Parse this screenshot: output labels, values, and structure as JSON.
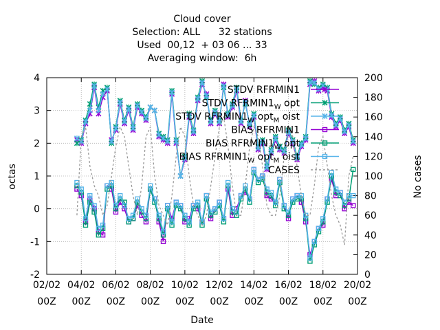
{
  "chart_data": {
    "type": "line",
    "title_lines": [
      "Cloud cover",
      "Selection: ALL      32 stations",
      "Used  00,12  + 03 06 ... 33",
      "Averaging window:  6h"
    ],
    "xlabel": "Date",
    "ylabel": "octas",
    "y2label": "No cases",
    "x_ticks": [
      {
        "d": "02/02",
        "t": "00Z"
      },
      {
        "d": "04/02",
        "t": "00Z"
      },
      {
        "d": "06/02",
        "t": "00Z"
      },
      {
        "d": "08/02",
        "t": "00Z"
      },
      {
        "d": "10/02",
        "t": "00Z"
      },
      {
        "d": "12/02",
        "t": "00Z"
      },
      {
        "d": "14/02",
        "t": "00Z"
      },
      {
        "d": "16/02",
        "t": "00Z"
      },
      {
        "d": "18/02",
        "t": "00Z"
      },
      {
        "d": "20/02",
        "t": "00Z"
      }
    ],
    "x_range_days": [
      0,
      18
    ],
    "y_ticks": [
      "-2",
      "-1",
      "0",
      "1",
      "2",
      "3",
      "4"
    ],
    "ylim": [
      -2,
      4
    ],
    "y2_ticks": [
      "0",
      "20",
      "40",
      "60",
      "80",
      "100",
      "120",
      "140",
      "160",
      "180",
      "200"
    ],
    "y2lim": [
      0,
      200
    ],
    "grid": true,
    "legend_position": "top-right",
    "legend": [
      {
        "base": "STDV RFRMIN1",
        "sub": "",
        "rest": ""
      },
      {
        "base": "STDV RFRMIN1",
        "sub": "W",
        "rest": " opt"
      },
      {
        "base": "STDV RFRMIN1",
        "sub": "W",
        "rest": " opt",
        "sub2": "M",
        "rest2": " oist"
      },
      {
        "base": "BIAS RFRMIN1",
        "sub": "",
        "rest": ""
      },
      {
        "base": "BIAS RFRMIN1",
        "sub": "W",
        "rest": " opt"
      },
      {
        "base": "BIAS RFRMIN1",
        "sub": "W",
        "rest": " opt",
        "sub2": "M",
        "rest2": " oist"
      },
      {
        "base": "CASES",
        "sub": "",
        "rest": ""
      }
    ],
    "x": [
      1.75,
      2,
      2.25,
      2.5,
      2.75,
      3,
      3.25,
      3.5,
      3.75,
      4,
      4.25,
      4.5,
      4.75,
      5,
      5.25,
      5.5,
      5.75,
      6,
      6.25,
      6.5,
      6.75,
      7,
      7.25,
      7.5,
      7.75,
      8,
      8.25,
      8.5,
      8.75,
      9,
      9.25,
      9.5,
      9.75,
      10,
      10.25,
      10.5,
      10.75,
      11,
      11.25,
      11.5,
      11.75,
      12,
      12.25,
      12.5,
      12.75,
      13,
      13.25,
      13.5,
      13.75,
      14,
      14.25,
      14.5,
      14.75,
      15,
      15.25,
      15.5,
      15.75,
      16,
      16.25,
      16.5,
      16.75,
      17,
      17.25,
      17.5,
      17.75
    ],
    "series": [
      {
        "name": "STDV RFRMIN1",
        "color": "#9400d3",
        "marker": "x",
        "axis": "y1",
        "values": [
          2.1,
          2.0,
          2.6,
          2.9,
          3.7,
          2.9,
          3.4,
          3.6,
          2.1,
          2.4,
          3.2,
          2.6,
          3.0,
          2.4,
          3.1,
          2.9,
          2.7,
          3.1,
          3.0,
          2.2,
          2.1,
          2.0,
          3.5,
          2.0,
          1.0,
          1.5,
          2.8,
          2.3,
          3.3,
          3.8,
          3.5,
          2.6,
          2.9,
          2.6,
          3.8,
          2.8,
          3.1,
          3.6,
          2.6,
          3.3,
          2.5,
          2.8,
          1.8,
          2.0,
          1.2,
          1.7,
          2.1,
          1.8,
          1.7,
          2.3,
          2.0,
          1.5,
          1.9,
          2.1,
          3.8,
          3.9,
          3.6,
          3.7,
          3.6,
          2.8,
          2.5,
          2.7,
          2.3,
          2.5,
          2.0
        ]
      },
      {
        "name": "STDV RFRMIN1_W opt",
        "color": "#009e73",
        "marker": "x",
        "axis": "y1",
        "values": [
          2.0,
          2.1,
          2.7,
          3.2,
          3.8,
          3.1,
          3.6,
          3.7,
          2.0,
          2.5,
          3.3,
          2.7,
          3.1,
          2.5,
          3.2,
          3.0,
          2.8,
          3.1,
          3.0,
          2.3,
          2.2,
          2.1,
          3.6,
          2.1,
          1.0,
          1.6,
          2.9,
          2.4,
          3.4,
          3.9,
          3.4,
          2.7,
          3.0,
          2.7,
          3.7,
          2.9,
          3.2,
          3.7,
          2.7,
          3.2,
          2.6,
          2.9,
          1.9,
          2.1,
          1.3,
          1.8,
          2.2,
          1.9,
          1.8,
          2.4,
          2.1,
          1.6,
          2.0,
          2.2,
          3.9,
          3.8,
          3.7,
          3.8,
          3.7,
          2.9,
          2.6,
          2.8,
          2.4,
          2.6,
          2.1
        ]
      },
      {
        "name": "STDV RFRMIN1_W opt_M oist",
        "color": "#56b4e9",
        "marker": "x",
        "axis": "y1",
        "values": [
          2.15,
          2.05,
          2.65,
          3.0,
          3.75,
          3.0,
          3.5,
          3.65,
          2.05,
          2.45,
          3.25,
          2.65,
          3.05,
          2.45,
          3.15,
          2.95,
          2.75,
          3.1,
          3.0,
          2.25,
          2.15,
          2.05,
          3.55,
          2.05,
          1.0,
          1.55,
          2.85,
          2.35,
          3.35,
          3.85,
          3.45,
          2.65,
          2.95,
          2.65,
          3.75,
          2.85,
          3.15,
          3.65,
          2.65,
          3.25,
          2.55,
          2.85,
          1.85,
          2.05,
          1.25,
          1.75,
          2.15,
          1.85,
          1.75,
          2.35,
          2.05,
          1.55,
          1.95,
          2.15,
          3.85,
          3.85,
          3.65,
          3.75,
          3.65,
          2.85,
          2.55,
          2.75,
          2.35,
          2.55,
          2.05
        ]
      },
      {
        "name": "BIAS RFRMIN1",
        "color": "#9400d3",
        "marker": "square",
        "axis": "y1",
        "values": [
          0.6,
          0.4,
          -0.4,
          0.3,
          0.0,
          -0.7,
          -0.8,
          0.7,
          0.6,
          -0.1,
          0.2,
          0.0,
          -0.4,
          -0.3,
          0.1,
          -0.2,
          -0.4,
          0.6,
          0.3,
          -0.4,
          -1.0,
          0.1,
          -0.3,
          0.2,
          0.1,
          -0.4,
          -0.3,
          0.1,
          0.0,
          -0.4,
          0.4,
          -0.3,
          0.0,
          0.2,
          -0.3,
          0.6,
          -0.2,
          0.0,
          0.4,
          0.5,
          0.3,
          1.2,
          0.9,
          1.0,
          0.4,
          0.3,
          0.2,
          0.9,
          0.1,
          -0.3,
          0.3,
          0.4,
          0.2,
          -0.4,
          -1.4,
          -1.0,
          -0.6,
          -0.5,
          0.3,
          0.9,
          0.4,
          0.5,
          0.0,
          0.2,
          0.1
        ]
      },
      {
        "name": "BIAS RFRMIN1_W opt",
        "color": "#009e73",
        "marker": "square",
        "axis": "y1",
        "values": [
          0.7,
          0.5,
          -0.5,
          0.2,
          -0.1,
          -0.8,
          -0.6,
          0.6,
          0.7,
          0.0,
          0.3,
          0.2,
          -0.4,
          -0.3,
          0.2,
          -0.1,
          -0.3,
          0.6,
          0.2,
          -0.3,
          -0.8,
          0.0,
          -0.5,
          0.1,
          0.0,
          -0.3,
          -0.5,
          0.0,
          0.1,
          -0.5,
          0.3,
          -0.2,
          -0.1,
          0.1,
          -0.4,
          0.7,
          -0.1,
          -0.2,
          0.3,
          0.6,
          0.2,
          1.1,
          0.8,
          0.9,
          0.5,
          0.4,
          0.1,
          0.8,
          0.0,
          -0.2,
          0.2,
          0.3,
          0.3,
          -0.3,
          -1.6,
          -1.1,
          -0.7,
          -0.4,
          0.2,
          1.0,
          0.5,
          0.4,
          0.1,
          0.3,
          1.2
        ]
      },
      {
        "name": "BIAS RFRMIN1_W opt_M oist",
        "color": "#56b4e9",
        "marker": "square",
        "axis": "y1",
        "values": [
          0.8,
          0.6,
          -0.3,
          0.4,
          0.1,
          -0.6,
          -0.5,
          0.7,
          0.8,
          0.1,
          0.4,
          0.1,
          -0.3,
          -0.2,
          0.3,
          0.0,
          -0.2,
          0.7,
          0.3,
          -0.2,
          -0.7,
          0.1,
          -0.4,
          0.2,
          0.1,
          -0.2,
          -0.4,
          0.1,
          0.2,
          -0.4,
          0.4,
          -0.1,
          0.0,
          0.2,
          -0.3,
          0.8,
          0.0,
          -0.1,
          0.4,
          0.7,
          0.3,
          1.2,
          0.9,
          1.0,
          0.6,
          0.5,
          0.2,
          0.9,
          0.1,
          -0.1,
          0.3,
          0.4,
          0.4,
          -0.2,
          -1.5,
          -1.0,
          -0.6,
          -0.3,
          0.3,
          1.1,
          0.6,
          0.5,
          0.2,
          0.4,
          0.4
        ]
      },
      {
        "name": "CASES",
        "color": "#999999",
        "marker": "none",
        "dash": true,
        "axis": "y2",
        "values": [
          60,
          140,
          150,
          110,
          90,
          80,
          60,
          70,
          100,
          130,
          150,
          140,
          110,
          80,
          60,
          90,
          140,
          150,
          100,
          70,
          60,
          50,
          80,
          120,
          150,
          140,
          100,
          70,
          60,
          50,
          60,
          90,
          120,
          150,
          160,
          130,
          90,
          60,
          60,
          90,
          130,
          150,
          140,
          110,
          70,
          60,
          60,
          80,
          120,
          150,
          140,
          110,
          80,
          60,
          60,
          90,
          130,
          140,
          110,
          80,
          60,
          50,
          30,
          100,
          120
        ]
      }
    ]
  }
}
